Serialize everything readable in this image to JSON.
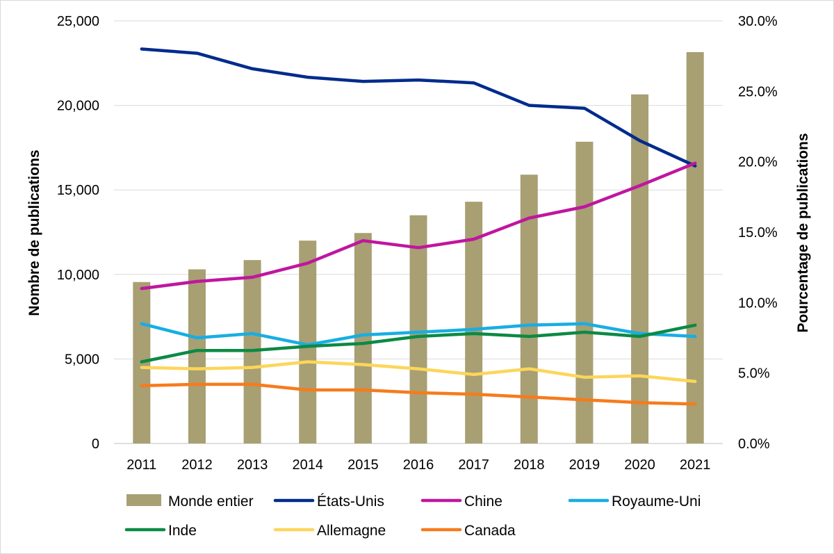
{
  "chart_data": {
    "type": "bar",
    "categories": [
      "2011",
      "2012",
      "2013",
      "2014",
      "2015",
      "2016",
      "2017",
      "2018",
      "2019",
      "2020",
      "2021"
    ],
    "left_axis": {
      "label": "Nombre de publications",
      "ylim": [
        0,
        25000
      ],
      "ticks": [
        "0",
        "5,000",
        "10,000",
        "15,000",
        "20,000",
        "25,000"
      ]
    },
    "right_axis": {
      "label": "Pourcentage de publications",
      "ylim": [
        0,
        30
      ],
      "ticks": [
        "0.0%",
        "5.0%",
        "10.0%",
        "15.0%",
        "20.0%",
        "25.0%",
        "30.0%"
      ]
    },
    "grid": true,
    "legend_position": "bottom",
    "series": [
      {
        "name": "Monde entier",
        "kind": "bar",
        "axis": "left",
        "color": "#a89f73",
        "values": [
          9550,
          10300,
          10850,
          12000,
          12450,
          13500,
          14300,
          15900,
          17850,
          20650,
          23150
        ]
      },
      {
        "name": "États-Unis",
        "kind": "line",
        "axis": "right",
        "color": "#002b8c",
        "values": [
          28.0,
          27.7,
          26.6,
          26.0,
          25.7,
          25.8,
          25.6,
          24.0,
          23.8,
          21.5,
          19.7
        ]
      },
      {
        "name": "Chine",
        "kind": "line",
        "axis": "right",
        "color": "#c0169f",
        "values": [
          11.0,
          11.5,
          11.8,
          12.8,
          14.4,
          13.9,
          14.5,
          16.0,
          16.8,
          18.3,
          19.9
        ]
      },
      {
        "name": "Royaume-Uni",
        "kind": "line",
        "axis": "right",
        "color": "#17aee3",
        "values": [
          8.5,
          7.5,
          7.8,
          7.0,
          7.7,
          7.9,
          8.1,
          8.4,
          8.5,
          7.8,
          7.6
        ]
      },
      {
        "name": "Inde",
        "kind": "line",
        "axis": "right",
        "color": "#0b8a44",
        "values": [
          5.8,
          6.6,
          6.6,
          6.9,
          7.1,
          7.6,
          7.8,
          7.6,
          7.9,
          7.6,
          8.4
        ]
      },
      {
        "name": "Allemagne",
        "kind": "line",
        "axis": "right",
        "color": "#fcd65a",
        "values": [
          5.4,
          5.3,
          5.4,
          5.8,
          5.6,
          5.3,
          4.9,
          5.3,
          4.7,
          4.8,
          4.4
        ]
      },
      {
        "name": "Canada",
        "kind": "line",
        "axis": "right",
        "color": "#f77b1c",
        "values": [
          4.1,
          4.2,
          4.2,
          3.8,
          3.8,
          3.6,
          3.5,
          3.3,
          3.1,
          2.9,
          2.8
        ]
      }
    ]
  }
}
